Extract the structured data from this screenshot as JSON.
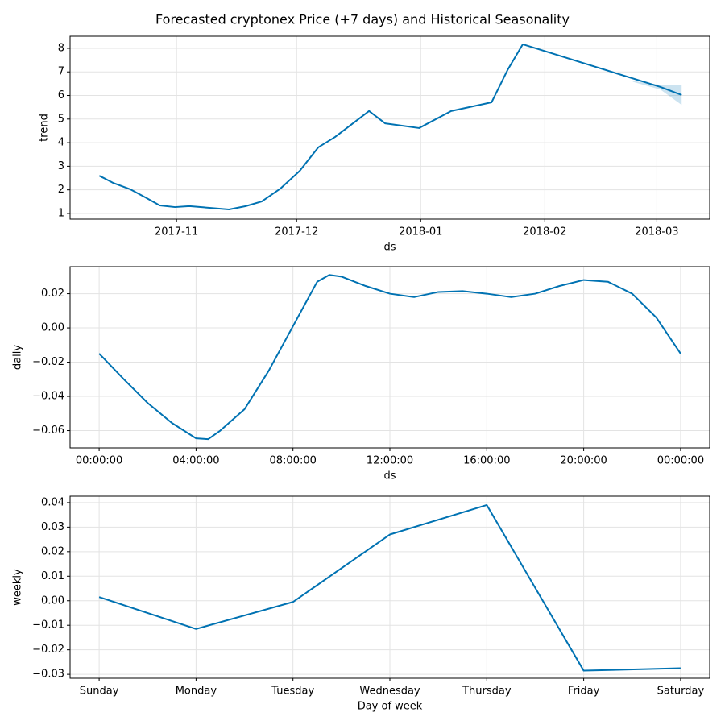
{
  "chart_data": [
    {
      "type": "line",
      "title": "Forecasted cryptonex Price (+7 days) and Historical Seasonality",
      "xlabel": "ds",
      "ylabel": "trend",
      "grid": true,
      "x": [
        -19.3,
        -15.9,
        -11.5,
        -7.8,
        -4.2,
        -0.4,
        3.2,
        13.1,
        17.3,
        21.3,
        26.0,
        30.8,
        35.4,
        39.6,
        48.1,
        52.1,
        60.6,
        68.6,
        78.7,
        82.7,
        86.5,
        120.9,
        126.2
      ],
      "series": [
        {
          "color": "#0072B2",
          "values": [
            2.6,
            2.3,
            2.02,
            1.68,
            1.34,
            1.27,
            1.31,
            1.17,
            1.31,
            1.51,
            2.06,
            2.81,
            3.8,
            4.24,
            5.34,
            4.82,
            4.62,
            5.34,
            5.71,
            7.08,
            8.17,
            6.36,
            6.02
          ]
        }
      ],
      "band": {
        "color": "#0072B2",
        "x": [
          114.0,
          120.9,
          126.2
        ],
        "lower": [
          6.58,
          6.25,
          5.6
        ],
        "upper": [
          6.62,
          6.45,
          6.45
        ]
      },
      "xlim": [
        -26.6,
        133.2
      ],
      "xticks": [
        {
          "value": 0,
          "label": "2017-11"
        },
        {
          "value": 30,
          "label": "2017-12"
        },
        {
          "value": 61,
          "label": "2018-01"
        },
        {
          "value": 92,
          "label": "2018-02"
        },
        {
          "value": 120,
          "label": "2018-03"
        }
      ],
      "ylim": [
        0.76,
        8.51
      ],
      "yticks": [
        1,
        2,
        3,
        4,
        5,
        6,
        7,
        8
      ]
    },
    {
      "type": "line",
      "xlabel": "ds",
      "ylabel": "daily",
      "grid": true,
      "x": [
        0,
        1,
        2,
        3,
        4,
        4.5,
        5,
        6,
        7,
        8,
        9,
        9.5,
        10,
        11,
        12,
        13,
        14,
        15,
        16,
        17,
        18,
        19,
        20,
        21,
        22,
        23,
        24
      ],
      "series": [
        {
          "color": "#0072B2",
          "values": [
            -0.015,
            -0.0297,
            -0.0438,
            -0.0555,
            -0.0645,
            -0.065,
            -0.06,
            -0.0475,
            -0.025,
            0.001,
            0.027,
            0.031,
            0.03,
            0.0245,
            0.02,
            0.018,
            0.021,
            0.0215,
            0.02,
            0.018,
            0.02,
            0.0245,
            0.028,
            0.027,
            0.02,
            0.006,
            -0.015
          ]
        }
      ],
      "xlim": [
        -1.2,
        25.2
      ],
      "xticks": [
        {
          "value": 0,
          "label": "00:00:00"
        },
        {
          "value": 4,
          "label": "04:00:00"
        },
        {
          "value": 8,
          "label": "08:00:00"
        },
        {
          "value": 12,
          "label": "12:00:00"
        },
        {
          "value": 16,
          "label": "16:00:00"
        },
        {
          "value": 20,
          "label": "20:00:00"
        },
        {
          "value": 24,
          "label": "00:00:00"
        }
      ],
      "ylim": [
        -0.0701,
        0.0358
      ],
      "yticks": [
        {
          "value": -0.06,
          "label": "−0.06"
        },
        {
          "value": -0.04,
          "label": "−0.04"
        },
        {
          "value": -0.02,
          "label": "−0.02"
        },
        {
          "value": 0,
          "label": "0.00"
        },
        {
          "value": 0.02,
          "label": "0.02"
        }
      ]
    },
    {
      "type": "line",
      "xlabel": "Day of week",
      "ylabel": "weekly",
      "grid": true,
      "categories": [
        "Sunday",
        "Monday",
        "Tuesday",
        "Wednesday",
        "Thursday",
        "Friday",
        "Saturday"
      ],
      "series": [
        {
          "color": "#0072B2",
          "values": [
            0.0015,
            -0.0115,
            -0.0005,
            0.027,
            0.039,
            -0.0285,
            -0.0275
          ]
        }
      ],
      "ylim": [
        -0.0316,
        0.0426
      ],
      "yticks": [
        {
          "value": -0.03,
          "label": "−0.03"
        },
        {
          "value": -0.02,
          "label": "−0.02"
        },
        {
          "value": -0.01,
          "label": "−0.01"
        },
        {
          "value": 0,
          "label": "0.00"
        },
        {
          "value": 0.01,
          "label": "0.01"
        },
        {
          "value": 0.02,
          "label": "0.02"
        },
        {
          "value": 0.03,
          "label": "0.03"
        },
        {
          "value": 0.04,
          "label": "0.04"
        }
      ]
    }
  ]
}
